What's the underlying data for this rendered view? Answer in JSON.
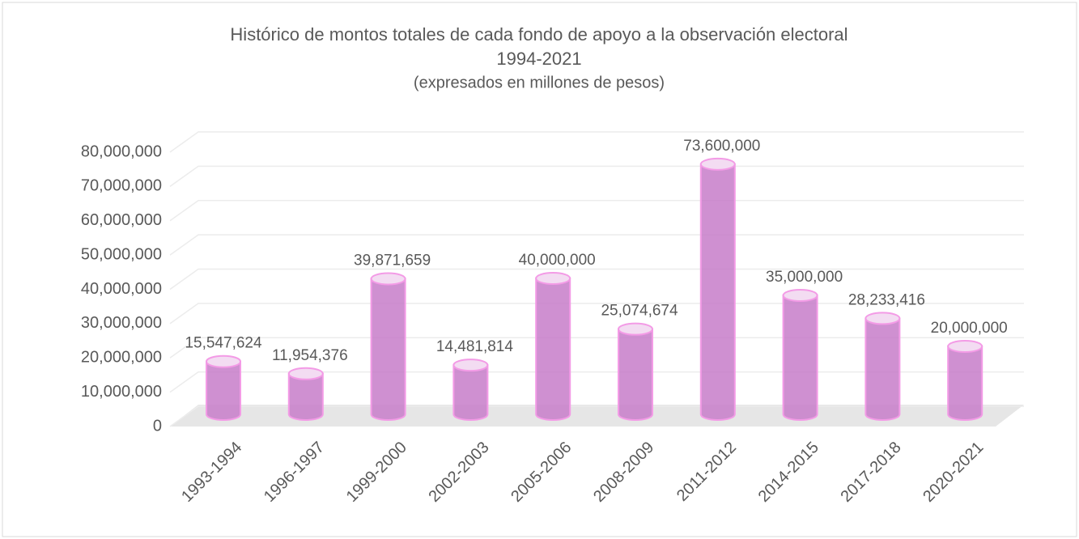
{
  "chart_data": {
    "type": "bar3d",
    "title": "Histórico de montos totales de cada fondo de apoyo a la observación electoral",
    "subtitle": "1994-2021",
    "note": "(expresados en millones de pesos)",
    "categories": [
      "1993-1994",
      "1996-1997",
      "1999-2000",
      "2002-2003",
      "2005-2006",
      "2008-2009",
      "2011-2012",
      "2014-2015",
      "2017-2018",
      "2020-2021"
    ],
    "values": [
      15547624,
      11954376,
      39871659,
      14481814,
      40000000,
      25074674,
      73600000,
      35000000,
      28233416,
      20000000
    ],
    "value_labels": [
      "15,547,624",
      "11,954,376",
      "39,871,659",
      "14,481,814",
      "40,000,000",
      "25,074,674",
      "73,600,000",
      "35,000,000",
      "28,233,416",
      "20,000,000"
    ],
    "color": "#c77dc9",
    "edge_color": "#f39be6",
    "ylim": [
      0,
      80000000
    ],
    "yticks": [
      0,
      {
        "value": 10000000,
        "label": "10,000,000"
      },
      {
        "value": 20000000,
        "label": "20,000,000"
      },
      {
        "value": 30000000,
        "label": "30,000,000"
      },
      {
        "value": 40000000,
        "label": "40,000,000"
      },
      {
        "value": 50000000,
        "label": "50,000,000"
      },
      {
        "value": 60000000,
        "label": "60,000,000"
      },
      {
        "value": 70000000,
        "label": "70,000,000"
      },
      {
        "value": 80000000,
        "label": "80,000,000"
      }
    ],
    "grid": true
  }
}
